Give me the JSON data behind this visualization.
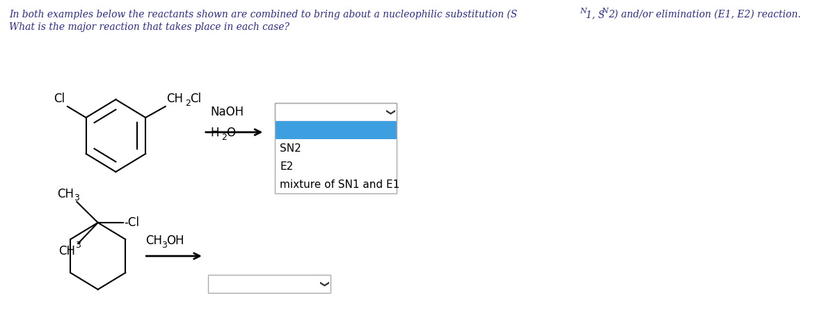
{
  "header_line1": "In both examples below the reactants shown are combined to bring about a nucleophilic substitution (S",
  "header_sub1": "N",
  "header_mid": "1, S",
  "header_sub2": "N",
  "header_end": "2) and/or elimination (E1, E2) reaction.",
  "header_line2": "What is the major reaction that takes place in each case?",
  "dropdown1_options": [
    "SN2",
    "E2",
    "mixture of SN1 and E1"
  ],
  "dropdown1_selected_color": "#3d9fdf",
  "bg_color": "#ffffff",
  "text_color": "#000000",
  "header_color": "#2c2c8c",
  "border_color": "#aaaaaa",
  "arrow_color": "#000000",
  "naoh_text": "NaOH",
  "h2o_text_h": "H",
  "h2o_text_sub": "2",
  "h2o_text_o": "O",
  "ch3oh_text": "CH",
  "ch3oh_sub": "3",
  "ch3oh_oh": "OH"
}
